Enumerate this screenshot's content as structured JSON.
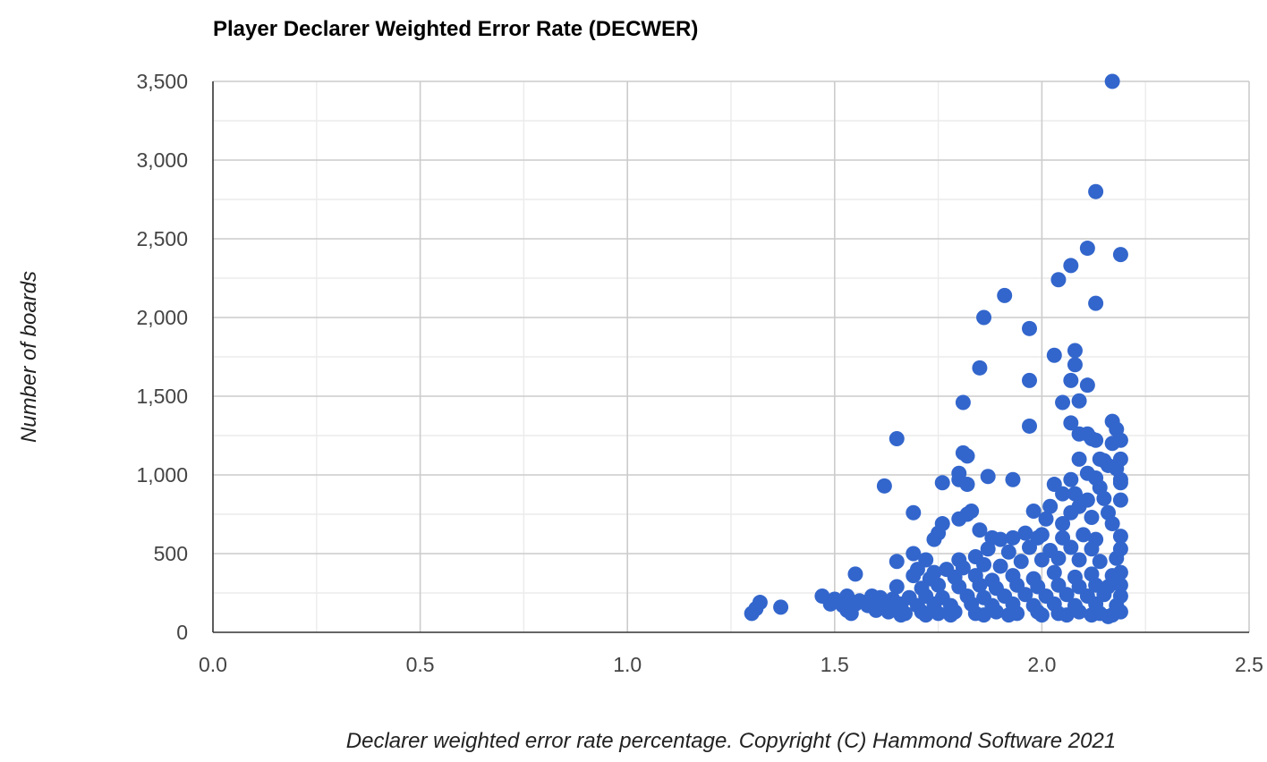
{
  "chart_data": {
    "type": "scatter",
    "title": "Player Declarer Weighted Error Rate (DECWER)",
    "xlabel": "Declarer weighted error rate percentage. Copyright (C) Hammond Software 2021",
    "ylabel": "Number of boards",
    "xlim": [
      0,
      2.5
    ],
    "ylim": [
      0,
      3500
    ],
    "x_ticks": [
      0,
      0.5,
      1.0,
      1.5,
      2.0,
      2.5
    ],
    "x_tick_labels": [
      "0.0",
      "0.5",
      "1.0",
      "1.5",
      "2.0",
      "2.5"
    ],
    "y_ticks": [
      0,
      500,
      1000,
      1500,
      2000,
      2500,
      3000,
      3500
    ],
    "y_tick_labels": [
      "0",
      "500",
      "1,000",
      "1,500",
      "2,000",
      "2,500",
      "3,000",
      "3,500"
    ],
    "grid": true,
    "legend": "none",
    "marker_color": "#3366cc",
    "points": [
      [
        2.17,
        3500
      ],
      [
        2.13,
        2800
      ],
      [
        2.11,
        2440
      ],
      [
        2.19,
        2400
      ],
      [
        2.07,
        2330
      ],
      [
        2.04,
        2240
      ],
      [
        1.91,
        2140
      ],
      [
        2.13,
        2090
      ],
      [
        1.86,
        2000
      ],
      [
        1.97,
        1930
      ],
      [
        2.08,
        1790
      ],
      [
        2.03,
        1760
      ],
      [
        2.08,
        1700
      ],
      [
        1.85,
        1680
      ],
      [
        1.97,
        1600
      ],
      [
        2.07,
        1600
      ],
      [
        2.11,
        1570
      ],
      [
        2.09,
        1470
      ],
      [
        1.81,
        1460
      ],
      [
        2.05,
        1460
      ],
      [
        2.07,
        1330
      ],
      [
        2.17,
        1340
      ],
      [
        1.97,
        1310
      ],
      [
        2.18,
        1290
      ],
      [
        2.09,
        1260
      ],
      [
        2.11,
        1260
      ],
      [
        2.12,
        1230
      ],
      [
        2.13,
        1220
      ],
      [
        1.65,
        1230
      ],
      [
        2.19,
        1220
      ],
      [
        2.17,
        1200
      ],
      [
        1.81,
        1140
      ],
      [
        1.82,
        1120
      ],
      [
        2.14,
        1100
      ],
      [
        2.09,
        1100
      ],
      [
        2.19,
        1100
      ],
      [
        2.15,
        1090
      ],
      [
        2.16,
        1060
      ],
      [
        2.18,
        1040
      ],
      [
        1.8,
        1010
      ],
      [
        2.11,
        1010
      ],
      [
        1.87,
        990
      ],
      [
        2.13,
        980
      ],
      [
        2.19,
        970
      ],
      [
        1.93,
        970
      ],
      [
        2.07,
        970
      ],
      [
        1.8,
        970
      ],
      [
        2.19,
        950
      ],
      [
        1.76,
        950
      ],
      [
        1.82,
        940
      ],
      [
        2.03,
        940
      ],
      [
        1.62,
        930
      ],
      [
        2.14,
        920
      ],
      [
        2.05,
        880
      ],
      [
        2.08,
        880
      ],
      [
        2.11,
        840
      ],
      [
        2.15,
        850
      ],
      [
        2.19,
        840
      ],
      [
        2.02,
        800
      ],
      [
        2.09,
        800
      ],
      [
        1.83,
        770
      ],
      [
        1.98,
        770
      ],
      [
        1.82,
        750
      ],
      [
        1.69,
        760
      ],
      [
        2.07,
        760
      ],
      [
        2.16,
        760
      ],
      [
        1.8,
        720
      ],
      [
        2.12,
        730
      ],
      [
        2.01,
        720
      ],
      [
        1.76,
        690
      ],
      [
        2.17,
        690
      ],
      [
        2.05,
        690
      ],
      [
        1.85,
        650
      ],
      [
        1.96,
        630
      ],
      [
        1.75,
        630
      ],
      [
        2.0,
        620
      ],
      [
        2.1,
        620
      ],
      [
        2.19,
        610
      ],
      [
        1.74,
        590
      ],
      [
        1.88,
        600
      ],
      [
        1.9,
        590
      ],
      [
        1.93,
        600
      ],
      [
        1.99,
        600
      ],
      [
        2.05,
        600
      ],
      [
        2.13,
        590
      ],
      [
        1.69,
        500
      ],
      [
        1.72,
        460
      ],
      [
        1.8,
        460
      ],
      [
        1.84,
        480
      ],
      [
        1.87,
        530
      ],
      [
        1.92,
        510
      ],
      [
        1.97,
        540
      ],
      [
        2.02,
        520
      ],
      [
        2.07,
        540
      ],
      [
        2.12,
        530
      ],
      [
        2.19,
        530
      ],
      [
        1.65,
        450
      ],
      [
        1.7,
        400
      ],
      [
        1.74,
        380
      ],
      [
        1.77,
        400
      ],
      [
        1.81,
        410
      ],
      [
        1.86,
        430
      ],
      [
        1.9,
        420
      ],
      [
        1.95,
        450
      ],
      [
        2.0,
        460
      ],
      [
        2.04,
        470
      ],
      [
        2.09,
        460
      ],
      [
        2.14,
        450
      ],
      [
        2.18,
        470
      ],
      [
        1.55,
        370
      ],
      [
        1.69,
        360
      ],
      [
        1.73,
        340
      ],
      [
        1.79,
        350
      ],
      [
        1.84,
        360
      ],
      [
        1.88,
        330
      ],
      [
        1.93,
        360
      ],
      [
        1.98,
        340
      ],
      [
        2.03,
        380
      ],
      [
        2.08,
        350
      ],
      [
        2.12,
        370
      ],
      [
        2.17,
        360
      ],
      [
        2.19,
        380
      ],
      [
        1.65,
        290
      ],
      [
        1.71,
        280
      ],
      [
        1.75,
        300
      ],
      [
        1.8,
        290
      ],
      [
        1.85,
        300
      ],
      [
        1.89,
        280
      ],
      [
        1.94,
        300
      ],
      [
        1.99,
        290
      ],
      [
        2.04,
        300
      ],
      [
        2.09,
        290
      ],
      [
        2.13,
        300
      ],
      [
        2.16,
        290
      ],
      [
        2.19,
        300
      ],
      [
        1.47,
        230
      ],
      [
        1.5,
        210
      ],
      [
        1.53,
        230
      ],
      [
        1.56,
        200
      ],
      [
        1.59,
        230
      ],
      [
        1.61,
        220
      ],
      [
        1.64,
        210
      ],
      [
        1.68,
        220
      ],
      [
        1.72,
        230
      ],
      [
        1.76,
        220
      ],
      [
        1.82,
        230
      ],
      [
        1.86,
        220
      ],
      [
        1.91,
        230
      ],
      [
        1.96,
        240
      ],
      [
        2.01,
        230
      ],
      [
        2.06,
        240
      ],
      [
        2.11,
        230
      ],
      [
        2.15,
        240
      ],
      [
        2.19,
        230
      ],
      [
        1.49,
        180
      ],
      [
        1.52,
        170
      ],
      [
        1.55,
        180
      ],
      [
        1.58,
        170
      ],
      [
        1.62,
        160
      ],
      [
        1.66,
        180
      ],
      [
        1.7,
        170
      ],
      [
        1.74,
        180
      ],
      [
        1.78,
        170
      ],
      [
        1.83,
        180
      ],
      [
        1.88,
        170
      ],
      [
        1.93,
        180
      ],
      [
        1.98,
        170
      ],
      [
        2.03,
        180
      ],
      [
        2.08,
        170
      ],
      [
        2.13,
        180
      ],
      [
        2.18,
        170
      ],
      [
        1.3,
        120
      ],
      [
        1.31,
        150
      ],
      [
        1.32,
        190
      ],
      [
        1.37,
        160
      ],
      [
        1.53,
        140
      ],
      [
        1.54,
        120
      ],
      [
        1.6,
        140
      ],
      [
        1.63,
        130
      ],
      [
        1.67,
        120
      ],
      [
        1.71,
        130
      ],
      [
        1.75,
        120
      ],
      [
        1.79,
        130
      ],
      [
        1.84,
        120
      ],
      [
        1.89,
        130
      ],
      [
        1.94,
        120
      ],
      [
        1.99,
        130
      ],
      [
        2.04,
        120
      ],
      [
        2.09,
        130
      ],
      [
        2.14,
        120
      ],
      [
        2.17,
        110
      ],
      [
        2.19,
        130
      ],
      [
        1.66,
        110
      ],
      [
        1.72,
        110
      ],
      [
        1.78,
        110
      ],
      [
        1.86,
        110
      ],
      [
        1.92,
        110
      ],
      [
        2.0,
        110
      ],
      [
        2.06,
        110
      ],
      [
        2.12,
        110
      ],
      [
        2.16,
        100
      ]
    ]
  }
}
